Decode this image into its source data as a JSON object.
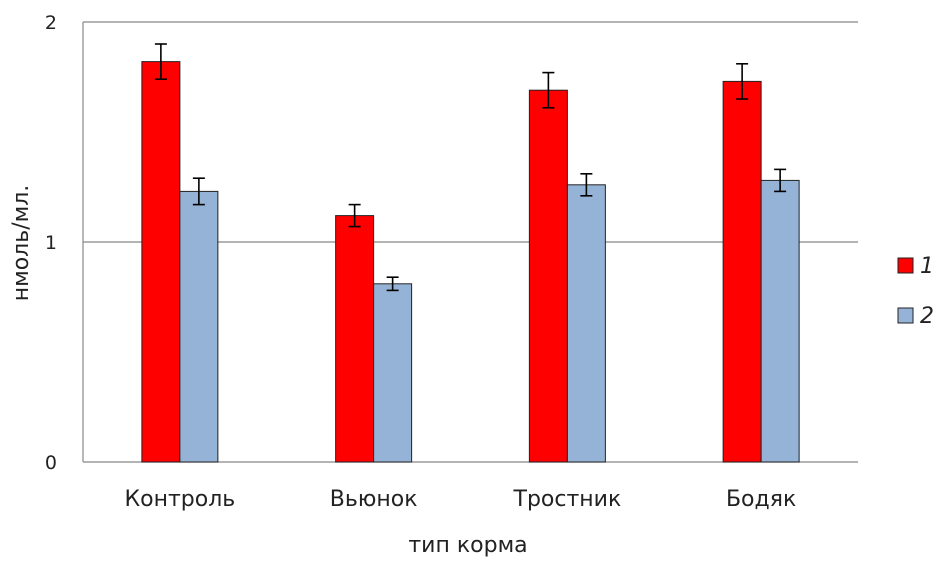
{
  "chart_data": {
    "type": "bar",
    "title": "",
    "xlabel": "тип корма",
    "ylabel": "нмоль/мл.",
    "ylim": [
      0,
      2
    ],
    "yticks": [
      "0",
      "1",
      "2"
    ],
    "grid": true,
    "legend_position": "right",
    "categories": [
      "Контроль",
      "Вьюнок",
      "Тростник",
      "Бодяк"
    ],
    "series": [
      {
        "name": "1",
        "color": "#ff0000",
        "values": [
          1.82,
          1.12,
          1.69,
          1.73
        ],
        "errors": [
          0.08,
          0.05,
          0.08,
          0.08
        ]
      },
      {
        "name": "2",
        "color": "#95b3d7",
        "values": [
          1.23,
          0.81,
          1.26,
          1.28
        ],
        "errors": [
          0.06,
          0.03,
          0.05,
          0.05
        ]
      }
    ]
  }
}
